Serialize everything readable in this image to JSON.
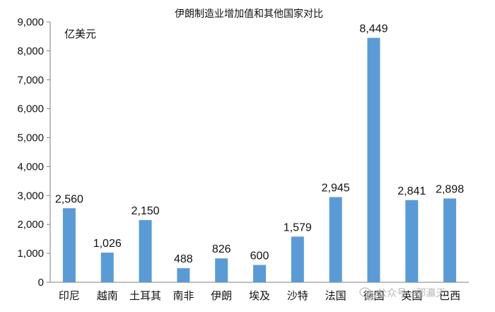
{
  "chart_data": {
    "type": "bar",
    "title": "伊朗制造业增加值和其他国家对比",
    "unit_label": "亿美元",
    "categories": [
      "印尼",
      "越南",
      "土耳其",
      "南非",
      "伊朗",
      "埃及",
      "沙特",
      "法国",
      "德国",
      "英国",
      "巴西"
    ],
    "values": [
      2560,
      1026,
      2150,
      488,
      826,
      600,
      1579,
      2945,
      8449,
      2841,
      2898
    ],
    "data_labels": [
      "2,560",
      "1,026",
      "2,150",
      "488",
      "826",
      "600",
      "1,579",
      "2,945",
      "8,449",
      "2,841",
      "2,898"
    ],
    "ylim": [
      0,
      9000
    ],
    "yticks": [
      0,
      1000,
      2000,
      3000,
      4000,
      5000,
      6000,
      7000,
      8000,
      9000
    ],
    "ytick_labels": [
      "0",
      "1,000",
      "2,000",
      "3,000",
      "4,000",
      "5,000",
      "6,000",
      "7,000",
      "8,000",
      "9,000"
    ],
    "bar_color": "#5b9bd5",
    "grid": false,
    "legend": "none"
  },
  "watermark": {
    "text": "公众号 · 郭瀛天"
  }
}
